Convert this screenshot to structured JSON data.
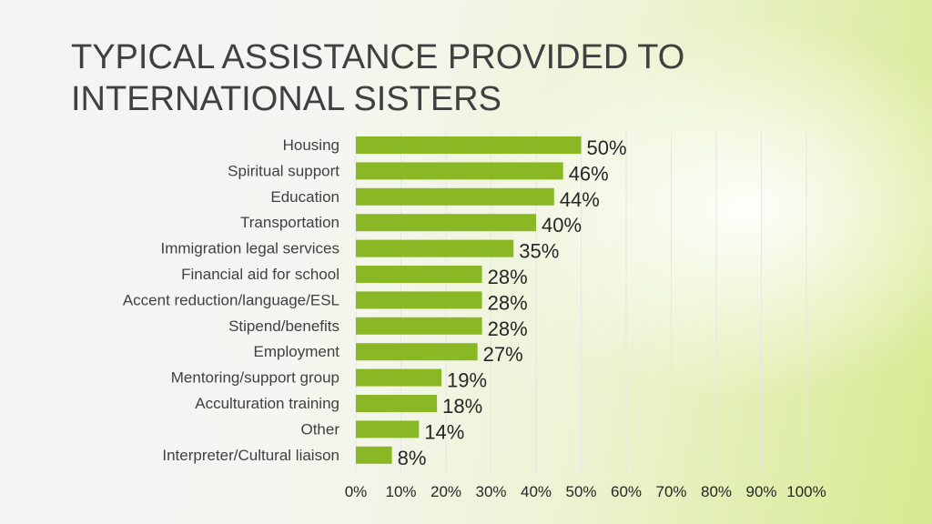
{
  "slide": {
    "title_line1": "TYPICAL ASSISTANCE PROVIDED TO",
    "title_line2": "INTERNATIONAL SISTERS"
  },
  "colors": {
    "bar": "#8ab825",
    "grid": "#e6e6e6",
    "text": "#404040"
  },
  "chart_data": {
    "type": "bar",
    "orientation": "horizontal",
    "categories": [
      "Housing",
      "Spiritual support",
      "Education",
      "Transportation",
      "Immigration legal services",
      "Financial aid for school",
      "Accent reduction/language/ESL",
      "Stipend/benefits",
      "Employment",
      "Mentoring/support group",
      "Acculturation training",
      "Other",
      "Interpreter/Cultural liaison"
    ],
    "values": [
      50,
      46,
      44,
      40,
      35,
      28,
      28,
      28,
      27,
      19,
      18,
      14,
      8
    ],
    "value_labels": [
      "50%",
      "46%",
      "44%",
      "40%",
      "35%",
      "28%",
      "28%",
      "28%",
      "27%",
      "19%",
      "18%",
      "14%",
      "8%"
    ],
    "xlim": [
      0,
      100
    ],
    "x_ticks": [
      "0%",
      "10%",
      "20%",
      "30%",
      "40%",
      "50%",
      "60%",
      "70%",
      "80%",
      "90%",
      "100%"
    ],
    "grid": true,
    "legend": "none"
  }
}
